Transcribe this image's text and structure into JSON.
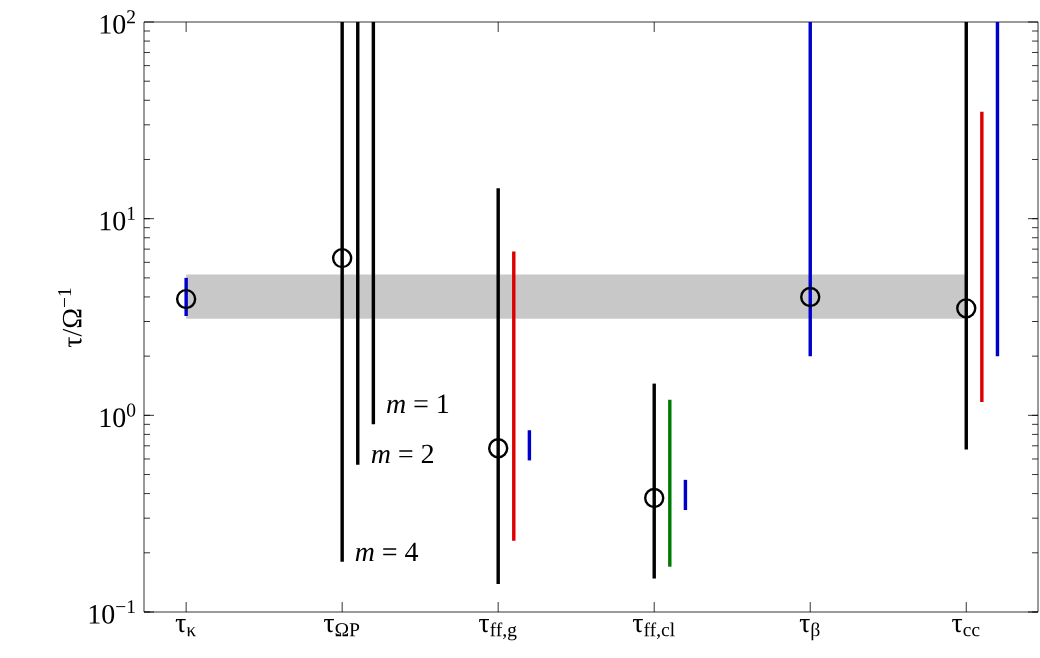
{
  "chart_data": {
    "type": "bar",
    "categories": [
      "τ$_{κ}$",
      "τ$_{ΩP}$",
      "τ$_{ff,g}$",
      "τ$_{ff,cl}$",
      "τ$_{β}$",
      "τ$_{cc}$"
    ],
    "ylabel": "τ/Ω$^{−1}$",
    "log": "y",
    "ylim": [
      0.1,
      100
    ],
    "yticks": [
      {
        "value": 0.1,
        "label": "10$^{−1}$"
      },
      {
        "value": 1,
        "label": "10$^{0}$"
      },
      {
        "value": 10,
        "label": "10$^{1}$"
      },
      {
        "value": 100,
        "label": "10$^{2}$"
      }
    ],
    "series": [
      {
        "base": [
          3.2,
          0.18,
          0.139,
          0.148,
          2.0,
          0.67
        ],
        "values": [
          1.8,
          99.82,
          14.161,
          1.302,
          98,
          99.33
        ],
        "colors": [
          "#0000cc",
          "#000000",
          "#000000",
          "#000000",
          "#0000cc",
          "#000000"
        ]
      },
      {
        "base": [
          null,
          0.56,
          0.23,
          0.17,
          null,
          1.17
        ],
        "values": [
          null,
          99.44,
          6.57,
          1.03,
          null,
          33.83
        ],
        "colors": [
          "#000000",
          "#000000",
          "#dd0000",
          "#007a00",
          "#000000",
          "#dd0000"
        ]
      },
      {
        "base": [
          null,
          0.9,
          0.59,
          0.33,
          null,
          2.0
        ],
        "values": [
          null,
          99.1,
          0.25,
          0.14,
          null,
          98
        ],
        "colors": [
          "#000000",
          "#000000",
          "#0000cc",
          "#0000cc",
          "#000000",
          "#0000cc"
        ]
      },
      {
        "type": "scatter",
        "marker": "circle",
        "color": "#000000",
        "values": [
          3.9,
          6.3,
          0.68,
          0.38,
          4.0,
          3.5
        ]
      }
    ],
    "bands": [
      {
        "axis": "y",
        "from": 3.1,
        "to": 5.2,
        "color": "#c8c8c8"
      }
    ],
    "annotations": [
      "*m* = 1",
      "*m* = 2",
      "*m* = 4"
    ]
  }
}
